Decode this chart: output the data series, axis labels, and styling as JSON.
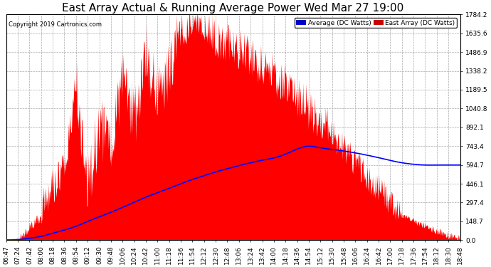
{
  "title": "East Array Actual & Running Average Power Wed Mar 27 19:00",
  "copyright": "Copyright 2019 Cartronics.com",
  "yticks": [
    0.0,
    148.7,
    297.4,
    446.1,
    594.7,
    743.4,
    892.1,
    1040.8,
    1189.5,
    1338.2,
    1486.9,
    1635.6,
    1784.2
  ],
  "ymax": 1784.2,
  "xtick_labels": [
    "06:47",
    "07:24",
    "07:42",
    "08:00",
    "08:18",
    "08:36",
    "08:54",
    "09:12",
    "09:30",
    "09:48",
    "10:06",
    "10:24",
    "10:42",
    "11:00",
    "11:18",
    "11:36",
    "11:54",
    "12:12",
    "12:30",
    "12:48",
    "13:06",
    "13:24",
    "13:42",
    "14:00",
    "14:18",
    "14:36",
    "14:54",
    "15:12",
    "15:30",
    "15:48",
    "16:06",
    "16:24",
    "16:42",
    "17:00",
    "17:18",
    "17:36",
    "17:54",
    "18:12",
    "18:30",
    "18:48"
  ],
  "legend_avg_color": "#0000cc",
  "legend_east_color": "#cc0000",
  "legend_avg_label": "Average (DC Watts)",
  "legend_east_label": "East Array (DC Watts)",
  "fill_color": "#ff0000",
  "line_color": "#0000ff",
  "background_color": "#ffffff",
  "grid_color": "#aaaaaa",
  "title_fontsize": 11,
  "tick_fontsize": 6.5,
  "figsize": [
    6.9,
    3.75
  ],
  "dpi": 100
}
